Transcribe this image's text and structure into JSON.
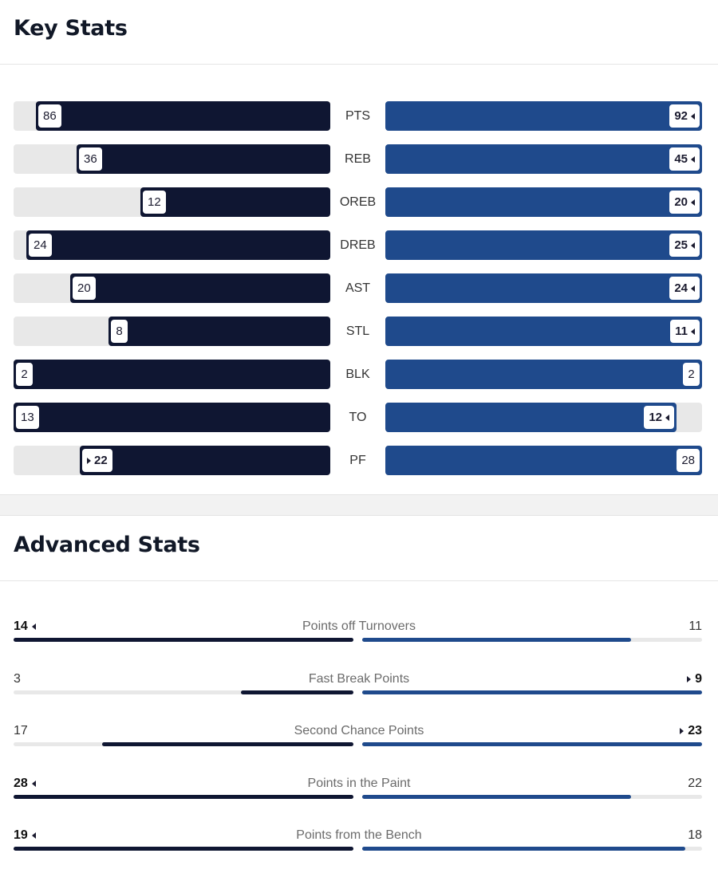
{
  "key_stats": {
    "title": "Key Stats",
    "rows": [
      {
        "label": "PTS",
        "away": 86,
        "home": 92,
        "leader": "home"
      },
      {
        "label": "REB",
        "away": 36,
        "home": 45,
        "leader": "home"
      },
      {
        "label": "OREB",
        "away": 12,
        "home": 20,
        "leader": "home"
      },
      {
        "label": "DREB",
        "away": 24,
        "home": 25,
        "leader": "home"
      },
      {
        "label": "AST",
        "away": 20,
        "home": 24,
        "leader": "home"
      },
      {
        "label": "STL",
        "away": 8,
        "home": 11,
        "leader": "home"
      },
      {
        "label": "BLK",
        "away": 2,
        "home": 2,
        "leader": "none"
      },
      {
        "label": "TO",
        "away": 13,
        "home": 12,
        "leader": "home"
      },
      {
        "label": "PF",
        "away": 22,
        "home": 28,
        "leader": "away"
      }
    ],
    "away_fill_fraction": [
      0.93,
      0.8,
      0.6,
      0.96,
      0.82,
      0.7,
      1.0,
      1.0,
      0.79
    ],
    "home_fill_fraction": [
      1.0,
      1.0,
      1.0,
      1.0,
      1.0,
      1.0,
      1.0,
      0.92,
      1.0
    ]
  },
  "advanced_stats": {
    "title": "Advanced Stats",
    "rows": [
      {
        "label": "Points off Turnovers",
        "away": 14,
        "home": 11,
        "leader": "away"
      },
      {
        "label": "Fast Break Points",
        "away": 3,
        "home": 9,
        "leader": "home"
      },
      {
        "label": "Second Chance Points",
        "away": 17,
        "home": 23,
        "leader": "home"
      },
      {
        "label": "Points in the Paint",
        "away": 28,
        "home": 22,
        "leader": "away"
      },
      {
        "label": "Points from the Bench",
        "away": 19,
        "home": 18,
        "leader": "away"
      }
    ],
    "away_fill_fraction": [
      1.0,
      0.33,
      0.74,
      1.0,
      1.0
    ],
    "home_fill_fraction": [
      0.79,
      1.0,
      1.0,
      0.79,
      0.95
    ]
  },
  "colors": {
    "away": "#0f1632",
    "home": "#1f4a8c",
    "track": "#e8e8e8"
  },
  "icons": {
    "leader_left": "caret-left-icon",
    "leader_right": "caret-right-icon"
  }
}
